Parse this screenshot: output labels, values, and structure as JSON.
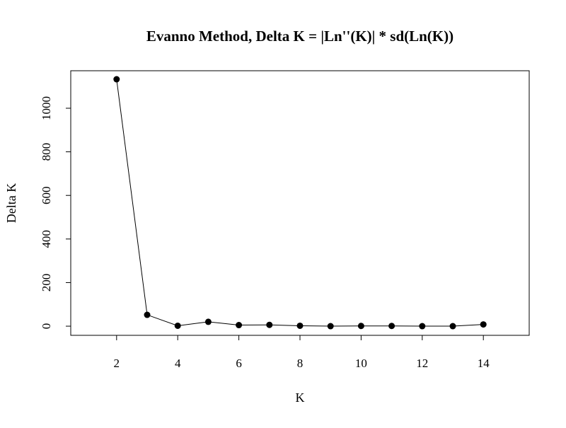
{
  "chart_data": {
    "type": "line",
    "title": "Evanno Method, Delta K = |Ln''(K)| * sd(Ln(K))",
    "xlabel": "K",
    "ylabel": "Delta K",
    "xlim": [
      0.5,
      15.5
    ],
    "ylim": [
      -42,
      1172
    ],
    "x_ticks": [
      2,
      4,
      6,
      8,
      10,
      12,
      14
    ],
    "y_ticks": [
      0,
      200,
      400,
      600,
      800,
      1000
    ],
    "grid": false,
    "legend": "none",
    "colors": {
      "line": "#000000",
      "points": "#000000",
      "frame": "#000000"
    },
    "x": [
      2,
      3,
      4,
      5,
      6,
      7,
      8,
      9,
      10,
      11,
      12,
      13,
      14
    ],
    "y": [
      1133,
      52,
      2,
      20,
      5,
      6,
      2,
      0,
      1,
      1,
      0,
      0,
      8
    ]
  }
}
